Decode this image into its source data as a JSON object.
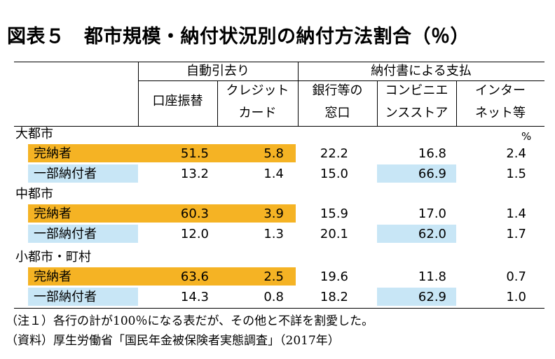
{
  "title": "図表５　都市規模・納付状況別の納付方法割合（％）",
  "header": {
    "group1": "自動引去り",
    "group2": "納付書による支払",
    "cols": [
      {
        "line1": "口座振替",
        "line2": ""
      },
      {
        "line1": "クレジット",
        "line2": "カード"
      },
      {
        "line1": "銀行等の",
        "line2": "窓口"
      },
      {
        "line1": "コンビニエ",
        "line2": "ンスストア"
      },
      {
        "line1": "インター",
        "line2": "ネット等"
      }
    ],
    "unit": "%"
  },
  "chart_data": {
    "type": "table",
    "title": "図表５　都市規模・納付状況別の納付方法割合（％）",
    "columns": [
      "口座振替",
      "クレジットカード",
      "銀行等の窓口",
      "コンビニエンスストア",
      "インターネット等"
    ],
    "groups": [
      {
        "name": "大都市",
        "rows": [
          {
            "label": "完納者",
            "values": [
              "51.5",
              "5.8",
              "22.2",
              "16.8",
              "2.4"
            ]
          },
          {
            "label": "一部納付者",
            "values": [
              "13.2",
              "1.4",
              "15.0",
              "66.9",
              "1.5"
            ]
          }
        ]
      },
      {
        "name": "中都市",
        "rows": [
          {
            "label": "完納者",
            "values": [
              "60.3",
              "3.9",
              "15.9",
              "17.0",
              "1.4"
            ]
          },
          {
            "label": "一部納付者",
            "values": [
              "12.0",
              "1.3",
              "20.1",
              "62.0",
              "1.7"
            ]
          }
        ]
      },
      {
        "name": "小都市・町村",
        "rows": [
          {
            "label": "完納者",
            "values": [
              "63.6",
              "2.5",
              "19.6",
              "11.8",
              "0.7"
            ]
          },
          {
            "label": "一部納付者",
            "values": [
              "14.3",
              "0.8",
              "18.2",
              "62.9",
              "1.0"
            ]
          }
        ]
      }
    ],
    "highlight_colors": {
      "orange": "#f5b324",
      "blue": "#c8e6f6"
    }
  },
  "notes": [
    "（注１）各行の計が100％になる表だが、その他と不詳を割愛した。",
    "（資料）厚生労働省「国民年金被保険者実態調査」（2017年）"
  ]
}
